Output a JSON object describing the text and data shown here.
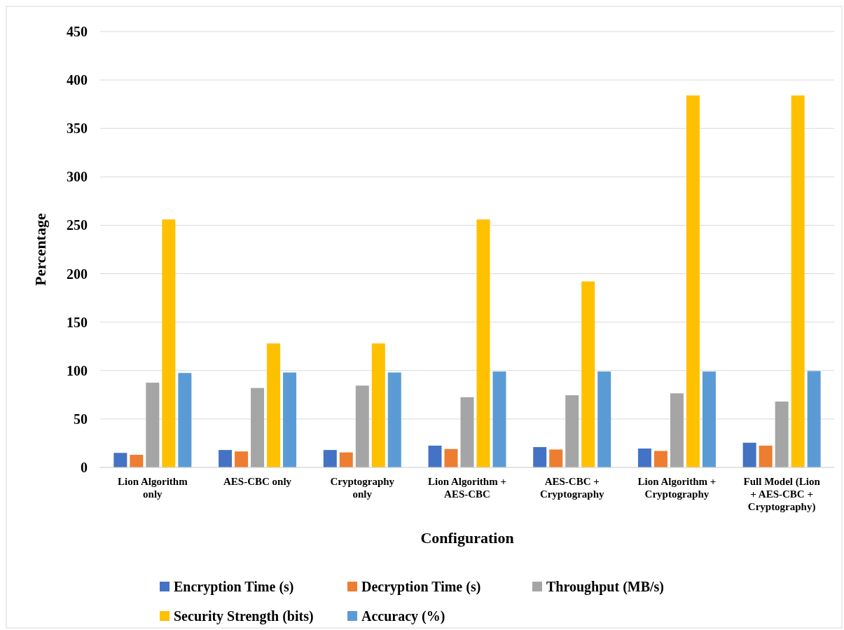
{
  "chart_data": {
    "type": "bar",
    "xlabel": "Configuration",
    "ylabel": "Percentage",
    "categories": [
      "Lion Algorithm only",
      "AES-CBC only",
      "Cryptography only",
      "Lion Algorithm + AES-CBC",
      "AES-CBC + Cryptography",
      "Lion Algorithm + Cryptography",
      "Full Model (Lion + AES-CBC + Cryptography)"
    ],
    "series": [
      {
        "name": "Encryption Time (s)",
        "color": "#4472c4",
        "values": [
          15,
          18,
          18,
          22.5,
          21,
          19.5,
          25.5
        ]
      },
      {
        "name": "Decryption Time (s)",
        "color": "#ed7d31",
        "values": [
          13,
          16.5,
          15.5,
          19,
          18.5,
          17,
          22.5
        ]
      },
      {
        "name": "Throughput (MB/s)",
        "color": "#a5a5a5",
        "values": [
          87.5,
          82,
          84.5,
          72.5,
          74.5,
          76.5,
          68
        ]
      },
      {
        "name": "Security Strength (bits)",
        "color": "#ffc000",
        "values": [
          256,
          128,
          128,
          256,
          192,
          384,
          384
        ]
      },
      {
        "name": "Accuracy (%)",
        "color": "#5b9bd5",
        "values": [
          97.5,
          98,
          98,
          99,
          99,
          99,
          99.5
        ]
      }
    ],
    "ylim": [
      0,
      450
    ],
    "yticks": [
      0,
      50,
      100,
      150,
      200,
      250,
      300,
      350,
      400,
      450
    ],
    "grid": "y",
    "legend": "bottom"
  }
}
